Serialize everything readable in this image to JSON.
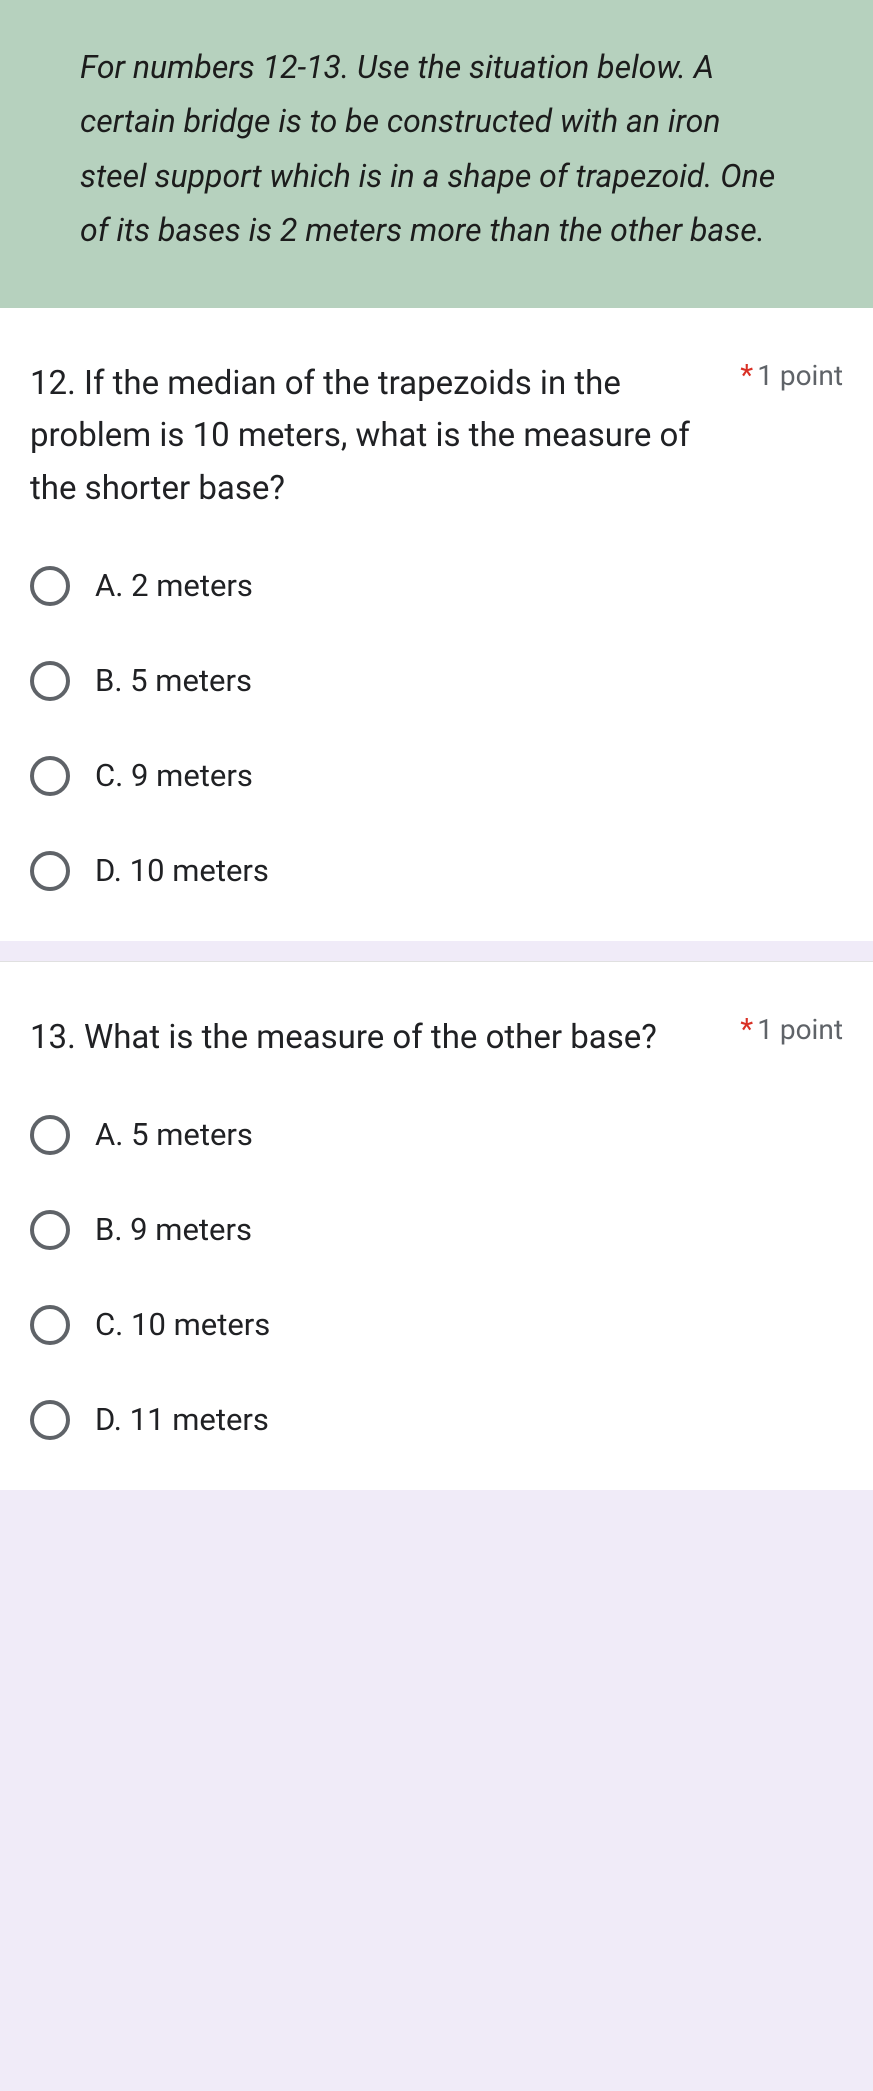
{
  "context": {
    "text": "For numbers 12-13. Use the situation below. A certain bridge is to be constructed with an iron steel support which is in a shape of trapezoid. One of its bases is 2 meters more than the other base.",
    "background_color": "#b6d1be"
  },
  "questions": [
    {
      "text": "12. If the median of the trapezoids in the problem is 10 meters, what is the measure of the shorter base?",
      "required_mark": "*",
      "points": "1 point",
      "options": [
        "A. 2 meters",
        "B. 5 meters",
        "C. 9 meters",
        "D. 10 meters"
      ]
    },
    {
      "text": "13. What is the measure of the other base?",
      "required_mark": "*",
      "points": "1 point",
      "options": [
        "A. 5 meters",
        "B. 9 meters",
        "C. 10 meters",
        "D. 11 meters"
      ]
    }
  ],
  "colors": {
    "required_star": "#d93025",
    "points_text": "#5f6368",
    "body_text": "#202124",
    "radio_border": "#5f6368",
    "card_bg": "#ffffff"
  }
}
